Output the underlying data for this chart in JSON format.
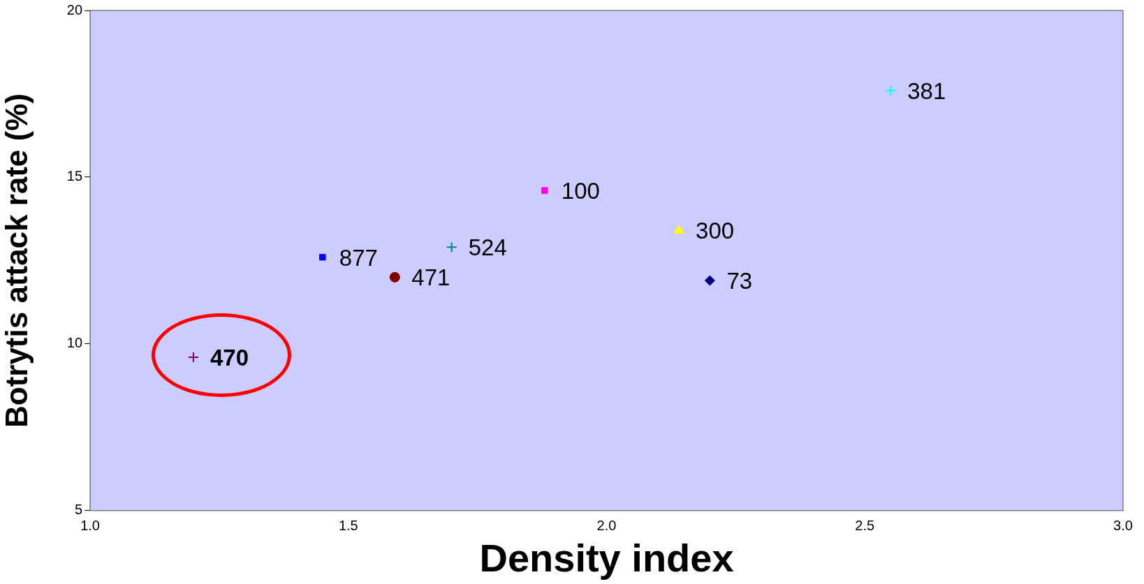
{
  "chart_data": {
    "type": "scatter",
    "xlabel": "Density index",
    "ylabel": "Botrytis attack rate (%)",
    "xlim": [
      1,
      3
    ],
    "xticks": [
      {
        "value": 1,
        "label": "1.0"
      },
      {
        "value": 1.5,
        "label": "1.5"
      },
      {
        "value": 2,
        "label": "2.0"
      },
      {
        "value": 2.5,
        "label": "2.5"
      },
      {
        "value": 3,
        "label": "3.0"
      }
    ],
    "ylim": [
      5,
      20
    ],
    "yticks": [
      5,
      10,
      15,
      20
    ],
    "grid": false,
    "legend": false,
    "series": [
      {
        "name": "470",
        "color": "#800080",
        "marker": "cross",
        "x": [
          1.2
        ],
        "values": [
          9.6
        ]
      },
      {
        "name": "877",
        "color": "#0000ff",
        "marker": "square",
        "x": [
          1.45
        ],
        "values": [
          12.6
        ]
      },
      {
        "name": "471",
        "color": "#800000",
        "marker": "circle",
        "x": [
          1.59
        ],
        "values": [
          12.0
        ]
      },
      {
        "name": "524",
        "color": "#008080",
        "marker": "cross",
        "x": [
          1.7
        ],
        "values": [
          12.9
        ]
      },
      {
        "name": "100",
        "color": "#ff00ff",
        "marker": "square",
        "x": [
          1.88
        ],
        "values": [
          14.6
        ]
      },
      {
        "name": "300",
        "color": "#ffff00",
        "marker": "triangle",
        "x": [
          2.14
        ],
        "values": [
          13.4
        ]
      },
      {
        "name": "73",
        "color": "#000080",
        "marker": "diamond",
        "x": [
          2.2
        ],
        "values": [
          11.9
        ]
      },
      {
        "name": "381",
        "color": "#00ffff",
        "marker": "cross",
        "x": [
          2.55
        ],
        "values": [
          17.6
        ]
      }
    ]
  }
}
